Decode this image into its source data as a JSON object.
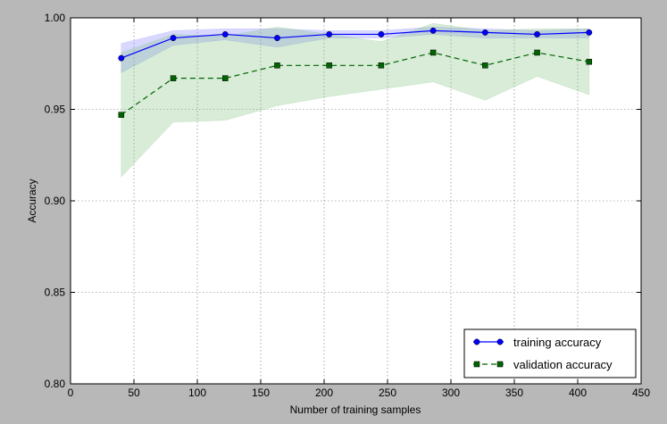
{
  "chart_data": {
    "type": "line",
    "xlabel": "Number of training samples",
    "ylabel": "Accuracy",
    "xlim": [
      0,
      450
    ],
    "ylim": [
      0.8,
      1.0
    ],
    "xticks": [
      0,
      50,
      100,
      150,
      200,
      250,
      300,
      350,
      400,
      450
    ],
    "xtick_labels": [
      "0",
      "50",
      "100",
      "150",
      "200",
      "250",
      "300",
      "350",
      "400",
      "450"
    ],
    "yticks": [
      0.8,
      0.85,
      0.9,
      0.95,
      1.0
    ],
    "ytick_labels": [
      "0.80",
      "0.85",
      "0.90",
      "0.95",
      "1.00"
    ],
    "grid": true,
    "legend_position": "bottom-right",
    "x": [
      40,
      81,
      122,
      163,
      204,
      245,
      286,
      327,
      368,
      409
    ],
    "series": [
      {
        "name": "training accuracy",
        "color": "#0000ff",
        "linestyle": "solid",
        "marker": "circle",
        "values": [
          0.978,
          0.989,
          0.991,
          0.989,
          0.991,
          0.991,
          0.993,
          0.992,
          0.991,
          0.992
        ],
        "lower": [
          0.97,
          0.985,
          0.988,
          0.984,
          0.989,
          0.989,
          0.991,
          0.989,
          0.989,
          0.989
        ],
        "upper": [
          0.986,
          0.993,
          0.994,
          0.994,
          0.993,
          0.993,
          0.995,
          0.994,
          0.993,
          0.994
        ],
        "band_color": "#7f7fff"
      },
      {
        "name": "validation accuracy",
        "color": "#006400",
        "linestyle": "dashed",
        "marker": "square",
        "values": [
          0.947,
          0.967,
          0.967,
          0.974,
          0.974,
          0.974,
          0.981,
          0.974,
          0.981,
          0.976
        ],
        "lower": [
          0.913,
          0.943,
          0.944,
          0.952,
          0.957,
          0.961,
          0.965,
          0.955,
          0.968,
          0.958
        ],
        "upper": [
          0.981,
          0.991,
          0.99,
          0.995,
          0.991,
          0.987,
          0.997,
          0.993,
          0.994,
          0.994
        ],
        "band_color": "#7fbf7f"
      }
    ]
  }
}
